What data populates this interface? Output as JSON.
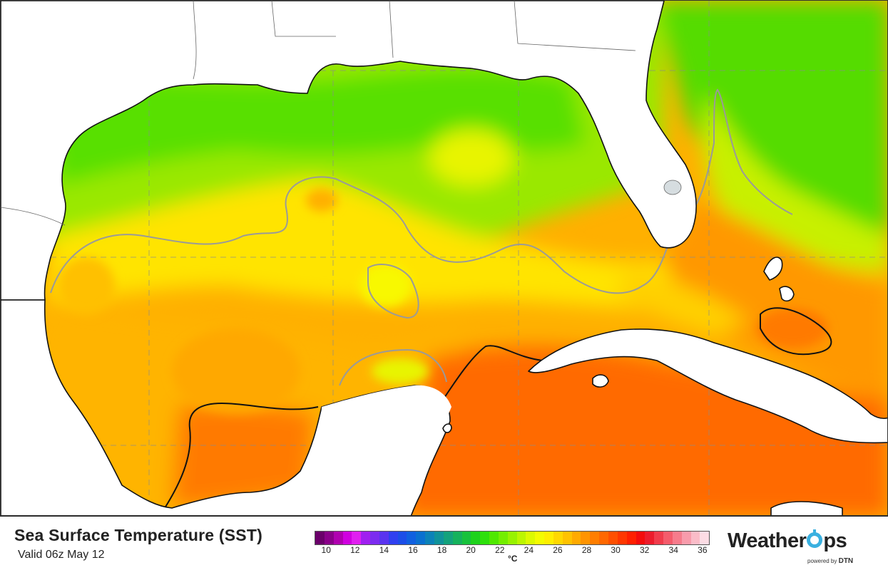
{
  "title": "Sea Surface Temperature (SST)",
  "valid": "Valid 06z May 12",
  "legend": {
    "unit": "°C",
    "ticks": [
      "10",
      "12",
      "14",
      "16",
      "18",
      "20",
      "22",
      "24",
      "26",
      "28",
      "30",
      "32",
      "34",
      "36"
    ],
    "min": 10,
    "max": 36,
    "colors": [
      "#6a006a",
      "#8a008a",
      "#b000b0",
      "#d000e0",
      "#e020f0",
      "#a020f0",
      "#7c2cf0",
      "#5a34f0",
      "#3040f0",
      "#1c4ee8",
      "#1060e0",
      "#0a70d0",
      "#0c82b8",
      "#10929a",
      "#14a27c",
      "#16b25c",
      "#18c23c",
      "#1ed21c",
      "#2ee00c",
      "#50e800",
      "#74ee00",
      "#98f200",
      "#bcf600",
      "#dcfa00",
      "#f4fc00",
      "#ffee00",
      "#ffd800",
      "#ffc200",
      "#ffaa00",
      "#ff9400",
      "#ff7e00",
      "#ff6800",
      "#ff5000",
      "#ff3800",
      "#ff2000",
      "#f40c0c",
      "#ec1c2c",
      "#f03c4c",
      "#f45c6c",
      "#f67c8c",
      "#f89cac",
      "#fabcc8",
      "#fcdce4"
    ]
  },
  "brand": {
    "name_part1": "Weather",
    "name_part2": "ps",
    "powered_by": "powered by",
    "powered_brand": "DTN"
  },
  "colors": {
    "land": "#ffffff",
    "isotherm_grey": "#9a9a9a",
    "isotherm_black": "#111111",
    "grid": "#8c8c8c"
  }
}
